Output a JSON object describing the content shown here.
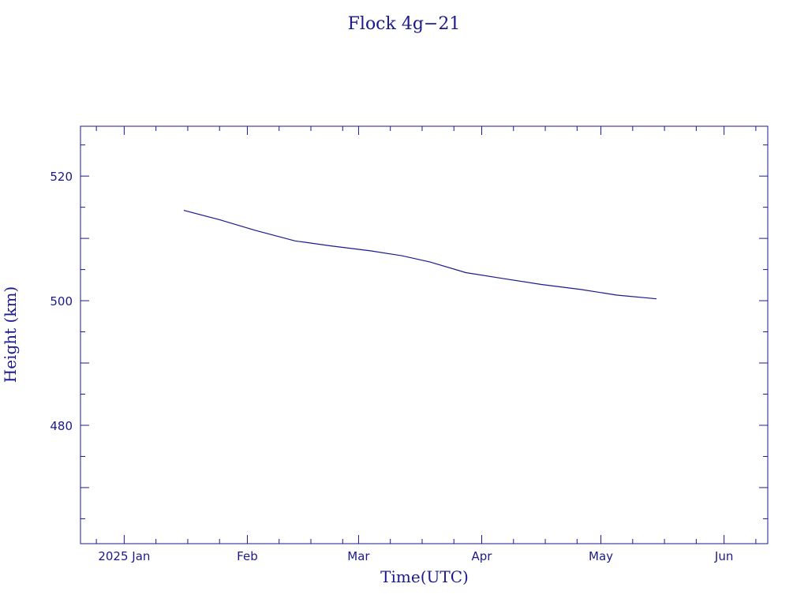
{
  "chart_data": {
    "type": "line",
    "title": "Flock 4g−21",
    "xlabel": "Time(UTC)",
    "ylabel": "Height (km)",
    "xlim": [
      "2024-12-21",
      "2025-06-12"
    ],
    "ylim": [
      461,
      528
    ],
    "grid": false,
    "x_ticks": [
      {
        "date": "2025-01-01",
        "label": "2025 Jan"
      },
      {
        "date": "2025-02-01",
        "label": "Feb"
      },
      {
        "date": "2025-03-01",
        "label": "Mar"
      },
      {
        "date": "2025-04-01",
        "label": "Apr"
      },
      {
        "date": "2025-05-01",
        "label": "May"
      },
      {
        "date": "2025-06-01",
        "label": "Jun"
      }
    ],
    "y_ticks": [
      480,
      500,
      520
    ],
    "y_minor_step": 5,
    "x_minor_days": [
      8,
      16,
      24
    ],
    "series": [
      {
        "name": "",
        "x": [
          "2025-01-16",
          "2025-01-25",
          "2025-02-03",
          "2025-02-13",
          "2025-02-22",
          "2025-03-04",
          "2025-03-12",
          "2025-03-19",
          "2025-03-28",
          "2025-04-06",
          "2025-04-16",
          "2025-04-26",
          "2025-05-05",
          "2025-05-15"
        ],
        "y": [
          514.5,
          513.0,
          511.3,
          509.6,
          508.8,
          508.0,
          507.2,
          506.2,
          504.5,
          503.6,
          502.6,
          501.8,
          500.9,
          500.3
        ]
      }
    ]
  }
}
